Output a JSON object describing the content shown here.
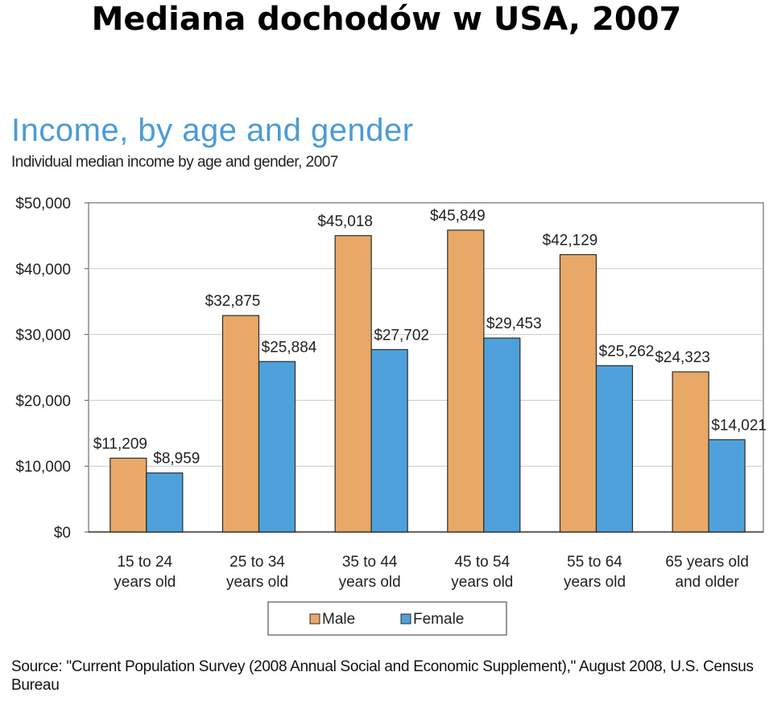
{
  "slide": {
    "title": "Mediana dochodów w USA, 2007"
  },
  "chart_data": {
    "type": "bar",
    "title": "Income, by age and gender",
    "subtitle": "Individual median income by age and gender, 2007",
    "categories": [
      [
        "15 to 24",
        "years old"
      ],
      [
        "25 to 34",
        "years old"
      ],
      [
        "35 to 44",
        "years old"
      ],
      [
        "45 to 54",
        "years old"
      ],
      [
        "55 to 64",
        "years old"
      ],
      [
        "65 years old",
        "and older"
      ]
    ],
    "series": [
      {
        "name": "Male",
        "color": "#e8a866",
        "values": [
          11209,
          32875,
          45018,
          45849,
          42129,
          24323
        ],
        "labels": [
          "$11,209",
          "$32,875",
          "$45,018",
          "$45,849",
          "$42,129",
          "$24,323"
        ]
      },
      {
        "name": "Female",
        "color": "#4ea1da",
        "values": [
          8959,
          25884,
          27702,
          29453,
          25262,
          14021
        ],
        "labels": [
          "$8,959",
          "$25,884",
          "$27,702",
          "$29,453",
          "$25,262",
          "$14,021"
        ]
      }
    ],
    "ylim": [
      0,
      50000
    ],
    "yticks": [
      0,
      10000,
      20000,
      30000,
      40000,
      50000
    ],
    "ytick_labels": [
      "$0",
      "$10,000",
      "$20,000",
      "$30,000",
      "$40,000",
      "$50,000"
    ],
    "grid": true,
    "legend_position": "bottom",
    "xlabel": "",
    "ylabel": ""
  },
  "source": "Source: \"Current Population Survey (2008 Annual Social and Economic Supplement),\" August 2008, U.S. Census Bureau"
}
